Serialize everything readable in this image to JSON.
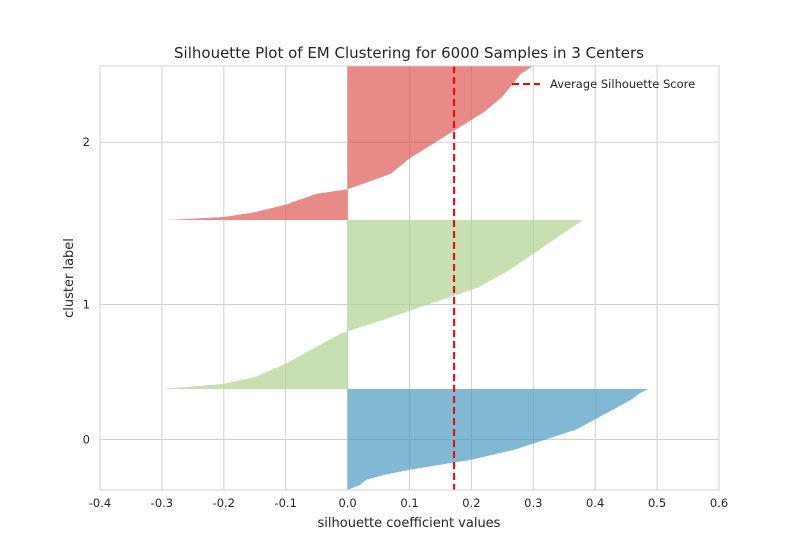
{
  "chart_data": {
    "type": "area",
    "title": "Silhouette Plot of EM Clustering for 6000 Samples in 3 Centers",
    "xlabel": "silhouette coefficient values",
    "ylabel": "cluster label",
    "xlim": [
      -0.4,
      0.6
    ],
    "xticks": [
      "-0.4",
      "-0.3",
      "-0.2",
      "-0.1",
      "0.0",
      "0.1",
      "0.2",
      "0.3",
      "0.4",
      "0.5",
      "0.6"
    ],
    "xtick_values": [
      -0.4,
      -0.3,
      -0.2,
      -0.1,
      0.0,
      0.1,
      0.2,
      0.3,
      0.4,
      0.5,
      0.6
    ],
    "ylim": [
      0,
      2560
    ],
    "grid": true,
    "legend_position": "top-right",
    "average_line": {
      "label": "Average Silhouette Score",
      "x": 0.172,
      "color": "#ff0000"
    },
    "clusters": [
      {
        "label": "0",
        "color": "#4c9ac2",
        "y_start": 0,
        "y_end": 610,
        "label_y": 305,
        "profile": [
          [
            0.0,
            0.0
          ],
          [
            0.05,
            0.02
          ],
          [
            0.1,
            0.03
          ],
          [
            0.15,
            0.06
          ],
          [
            0.2,
            0.1
          ],
          [
            0.3,
            0.2
          ],
          [
            0.4,
            0.27
          ],
          [
            0.5,
            0.32
          ],
          [
            0.6,
            0.37
          ],
          [
            0.7,
            0.4
          ],
          [
            0.8,
            0.43
          ],
          [
            0.9,
            0.46
          ],
          [
            0.95,
            0.47
          ],
          [
            1.0,
            0.485
          ]
        ]
      },
      {
        "label": "1",
        "color": "#b1d191",
        "y_start": 610,
        "y_end": 1630,
        "label_y": 1120,
        "profile": [
          [
            0.0,
            -0.3
          ],
          [
            0.03,
            -0.2
          ],
          [
            0.07,
            -0.15
          ],
          [
            0.15,
            -0.1
          ],
          [
            0.25,
            -0.05
          ],
          [
            0.33,
            -0.01
          ],
          [
            0.4,
            0.05
          ],
          [
            0.5,
            0.13
          ],
          [
            0.6,
            0.21
          ],
          [
            0.7,
            0.26
          ],
          [
            0.8,
            0.3
          ],
          [
            0.9,
            0.34
          ],
          [
            0.95,
            0.36
          ],
          [
            1.0,
            0.38
          ]
        ]
      },
      {
        "label": "2",
        "color": "#dd5955",
        "y_start": 1630,
        "y_end": 2560,
        "label_y": 2100,
        "profile": [
          [
            0.0,
            -0.29
          ],
          [
            0.02,
            -0.2
          ],
          [
            0.05,
            -0.15
          ],
          [
            0.1,
            -0.1
          ],
          [
            0.17,
            -0.05
          ],
          [
            0.2,
            0.0
          ],
          [
            0.3,
            0.07
          ],
          [
            0.4,
            0.1
          ],
          [
            0.5,
            0.14
          ],
          [
            0.6,
            0.18
          ],
          [
            0.7,
            0.22
          ],
          [
            0.8,
            0.25
          ],
          [
            0.9,
            0.27
          ],
          [
            0.95,
            0.28
          ],
          [
            1.0,
            0.3
          ]
        ]
      }
    ]
  }
}
